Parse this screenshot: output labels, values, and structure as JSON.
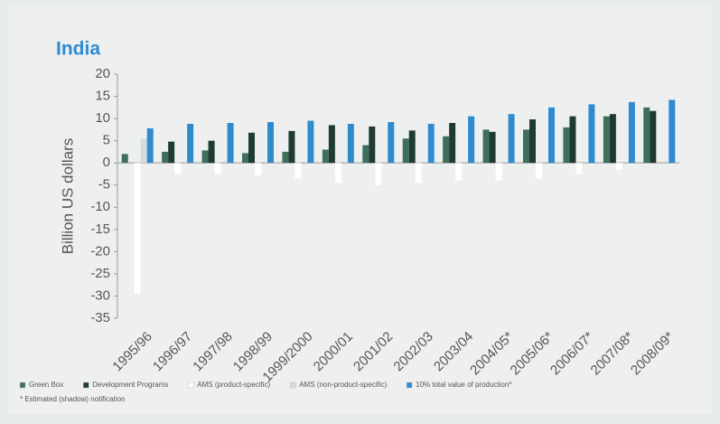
{
  "chart_data": {
    "type": "bar",
    "title": "India",
    "y_label": "Billion US dollars",
    "categories": [
      "1995/96",
      "1996/97",
      "1997/98",
      "1998/99",
      "1999/2000",
      "2000/01",
      "2001/02",
      "2002/03",
      "2003/04",
      "2004/05*",
      "2005/06*",
      "2006/07*",
      "2007/08*",
      "2008/09*"
    ],
    "series": [
      {
        "name": "Green Box",
        "color": "#3f6e5c",
        "values": [
          2,
          2.5,
          2.8,
          2.2,
          2.5,
          3,
          4,
          5.5,
          6,
          7.5,
          7.5,
          8,
          10.5,
          12.5
        ]
      },
      {
        "name": "Development Programs",
        "color": "#1e3a32",
        "values": [
          null,
          4.8,
          5,
          6.8,
          7.2,
          8.5,
          8.2,
          7.3,
          9,
          7,
          9.8,
          10.5,
          11,
          11.7
        ]
      },
      {
        "name": "AMS (product-specific)",
        "color": "#ffffff",
        "values": [
          -29.5,
          -2.5,
          -2.5,
          -2.8,
          -3.5,
          -4.5,
          -5,
          -4.5,
          -4,
          -4,
          -3.5,
          -2.5,
          -1.5,
          null
        ]
      },
      {
        "name": "AMS (non-product-specific)",
        "color": "#d6dadb",
        "values": [
          5.5,
          null,
          null,
          null,
          null,
          null,
          null,
          null,
          null,
          null,
          null,
          null,
          null,
          null
        ]
      },
      {
        "name": "10% total value of production*",
        "color": "#2f8bcf",
        "values": [
          7.8,
          8.8,
          9,
          9.2,
          9.5,
          8.8,
          9.2,
          8.8,
          10.5,
          11,
          12.5,
          13.2,
          13.7,
          14.2
        ]
      }
    ],
    "ylim": [
      -35,
      20
    ],
    "yticks": [
      -35,
      -30,
      -25,
      -20,
      -15,
      -10,
      -5,
      0,
      5,
      10,
      15,
      20
    ],
    "footnote": "* Estimated (shadow) notification"
  }
}
